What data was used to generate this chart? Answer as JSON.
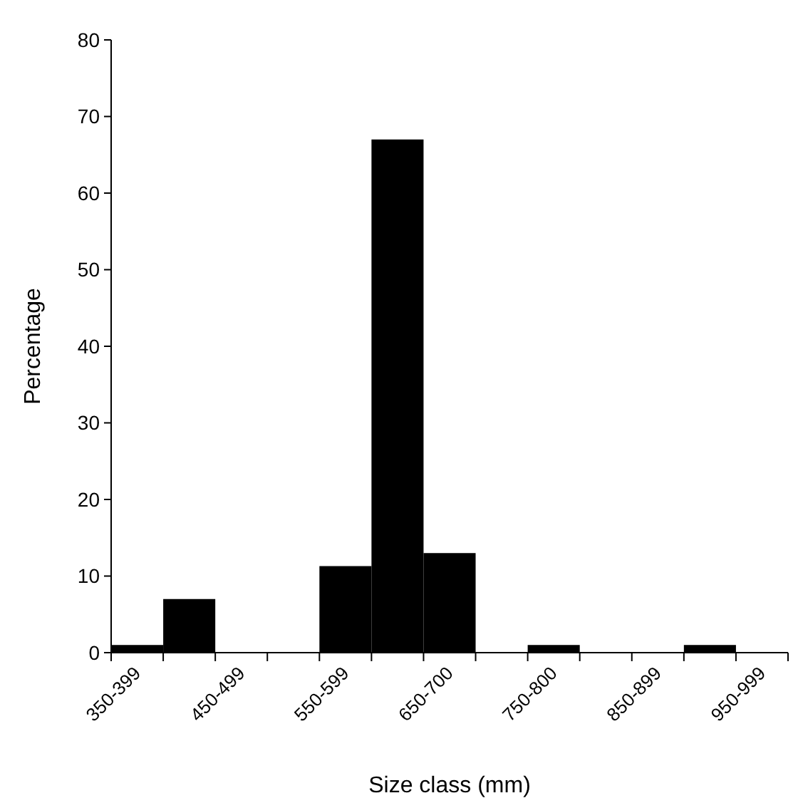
{
  "chart_data": {
    "type": "bar",
    "xlabel": "Size class (mm)",
    "ylabel": "Percentage",
    "categories": [
      "350-399",
      null,
      "450-499",
      null,
      "550-599",
      null,
      "650-700",
      null,
      "750-800",
      null,
      "850-899",
      null,
      "950-999"
    ],
    "values": [
      1,
      7,
      0,
      0,
      11.3,
      67,
      13,
      0,
      1,
      0,
      0,
      1,
      0
    ],
    "color": "#000000",
    "ylim": [
      0,
      80
    ],
    "yticks": [
      0,
      10,
      20,
      30,
      40,
      50,
      60,
      70,
      80
    ],
    "grid": false
  }
}
